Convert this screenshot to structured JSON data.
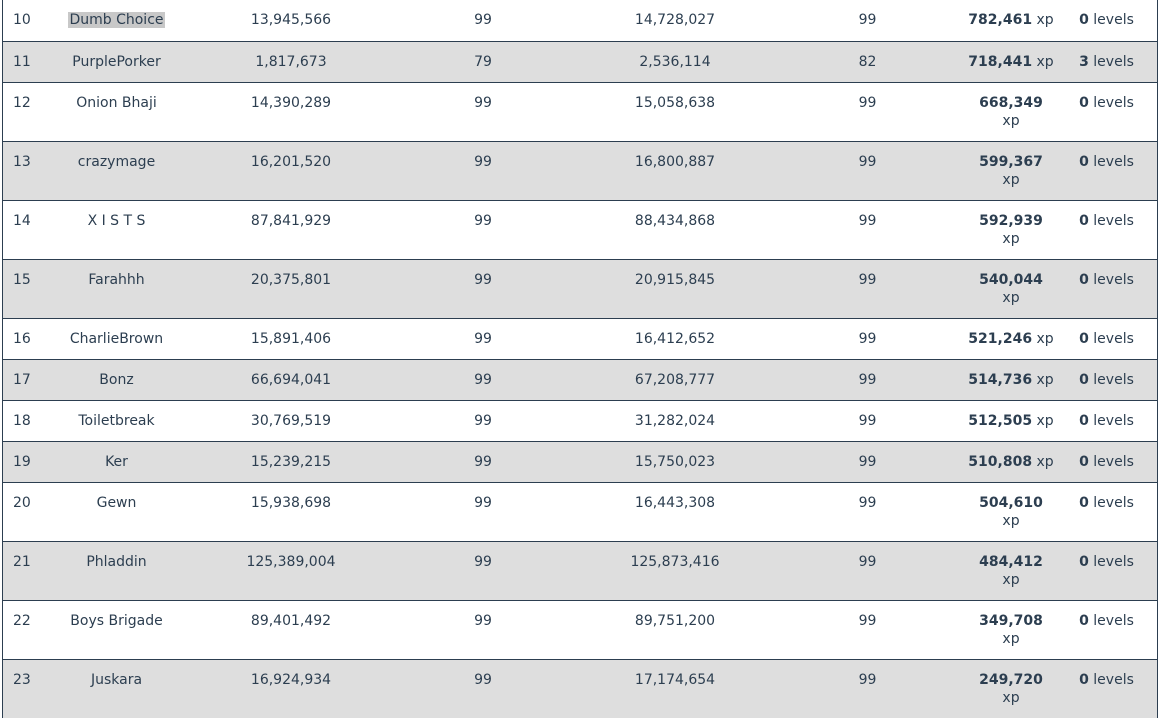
{
  "rows": [
    {
      "rank": "10",
      "name": "Dumb Choice",
      "xp_start": "13,945,566",
      "level_start": "99",
      "xp_end": "14,728,027",
      "level_end": "99",
      "xp_gain": "782,461",
      "xp_unit": "xp",
      "levels_gained": "0",
      "levels_unit": "levels",
      "selected": true,
      "wrap": false
    },
    {
      "rank": "11",
      "name": "PurplePorker",
      "xp_start": "1,817,673",
      "level_start": "79",
      "xp_end": "2,536,114",
      "level_end": "82",
      "xp_gain": "718,441",
      "xp_unit": "xp",
      "levels_gained": "3",
      "levels_unit": "levels",
      "wrap": false
    },
    {
      "rank": "12",
      "name": "Onion Bhaji",
      "xp_start": "14,390,289",
      "level_start": "99",
      "xp_end": "15,058,638",
      "level_end": "99",
      "xp_gain": "668,349",
      "xp_unit": "xp",
      "levels_gained": "0",
      "levels_unit": "levels",
      "wrap": true
    },
    {
      "rank": "13",
      "name": "crazymage",
      "xp_start": "16,201,520",
      "level_start": "99",
      "xp_end": "16,800,887",
      "level_end": "99",
      "xp_gain": "599,367",
      "xp_unit": "xp",
      "levels_gained": "0",
      "levels_unit": "levels",
      "wrap": true
    },
    {
      "rank": "14",
      "name": "X I S T S",
      "xp_start": "87,841,929",
      "level_start": "99",
      "xp_end": "88,434,868",
      "level_end": "99",
      "xp_gain": "592,939",
      "xp_unit": "xp",
      "levels_gained": "0",
      "levels_unit": "levels",
      "wrap": true
    },
    {
      "rank": "15",
      "name": "Farahhh",
      "xp_start": "20,375,801",
      "level_start": "99",
      "xp_end": "20,915,845",
      "level_end": "99",
      "xp_gain": "540,044",
      "xp_unit": "xp",
      "levels_gained": "0",
      "levels_unit": "levels",
      "wrap": true
    },
    {
      "rank": "16",
      "name": "CharlieBrown",
      "xp_start": "15,891,406",
      "level_start": "99",
      "xp_end": "16,412,652",
      "level_end": "99",
      "xp_gain": "521,246",
      "xp_unit": "xp",
      "levels_gained": "0",
      "levels_unit": "levels",
      "wrap": false
    },
    {
      "rank": "17",
      "name": "Bonz",
      "xp_start": "66,694,041",
      "level_start": "99",
      "xp_end": "67,208,777",
      "level_end": "99",
      "xp_gain": "514,736",
      "xp_unit": "xp",
      "levels_gained": "0",
      "levels_unit": "levels",
      "wrap": false
    },
    {
      "rank": "18",
      "name": "Toiletbreak",
      "xp_start": "30,769,519",
      "level_start": "99",
      "xp_end": "31,282,024",
      "level_end": "99",
      "xp_gain": "512,505",
      "xp_unit": "xp",
      "levels_gained": "0",
      "levels_unit": "levels",
      "wrap": false
    },
    {
      "rank": "19",
      "name": "Ker",
      "xp_start": "15,239,215",
      "level_start": "99",
      "xp_end": "15,750,023",
      "level_end": "99",
      "xp_gain": "510,808",
      "xp_unit": "xp",
      "levels_gained": "0",
      "levels_unit": "levels",
      "wrap": false
    },
    {
      "rank": "20",
      "name": "Gewn",
      "xp_start": "15,938,698",
      "level_start": "99",
      "xp_end": "16,443,308",
      "level_end": "99",
      "xp_gain": "504,610",
      "xp_unit": "xp",
      "levels_gained": "0",
      "levels_unit": "levels",
      "wrap": true
    },
    {
      "rank": "21",
      "name": "Phladdin",
      "xp_start": "125,389,004",
      "level_start": "99",
      "xp_end": "125,873,416",
      "level_end": "99",
      "xp_gain": "484,412",
      "xp_unit": "xp",
      "levels_gained": "0",
      "levels_unit": "levels",
      "wrap": true
    },
    {
      "rank": "22",
      "name": "Boys Brigade",
      "xp_start": "89,401,492",
      "level_start": "99",
      "xp_end": "89,751,200",
      "level_end": "99",
      "xp_gain": "349,708",
      "xp_unit": "xp",
      "levels_gained": "0",
      "levels_unit": "levels",
      "wrap": true
    },
    {
      "rank": "23",
      "name": "Juskara",
      "xp_start": "16,924,934",
      "level_start": "99",
      "xp_end": "17,174,654",
      "level_end": "99",
      "xp_gain": "249,720",
      "xp_unit": "xp",
      "levels_gained": "0",
      "levels_unit": "levels",
      "wrap": true
    }
  ]
}
